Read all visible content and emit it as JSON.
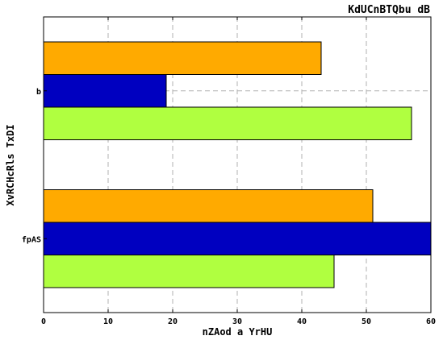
{
  "chart_data": {
    "type": "bar",
    "orientation": "horizontal",
    "title": "KdUCnBTQbu dB",
    "xlabel": "nZAod a YrHU",
    "ylabel": "XvRCHcRls TxDI",
    "categories": [
      "b",
      "fpAS"
    ],
    "series": [
      {
        "values": [
          43,
          51
        ],
        "color": "#ffaa00"
      },
      {
        "values": [
          19,
          60
        ],
        "color": "#0000c0"
      },
      {
        "values": [
          57,
          45
        ],
        "color": "#b0ff40"
      }
    ],
    "xlim": [
      0,
      60
    ],
    "xticks": [
      "0",
      "10",
      "20",
      "30",
      "40",
      "50",
      "60"
    ],
    "grid": true,
    "legend": "none"
  }
}
